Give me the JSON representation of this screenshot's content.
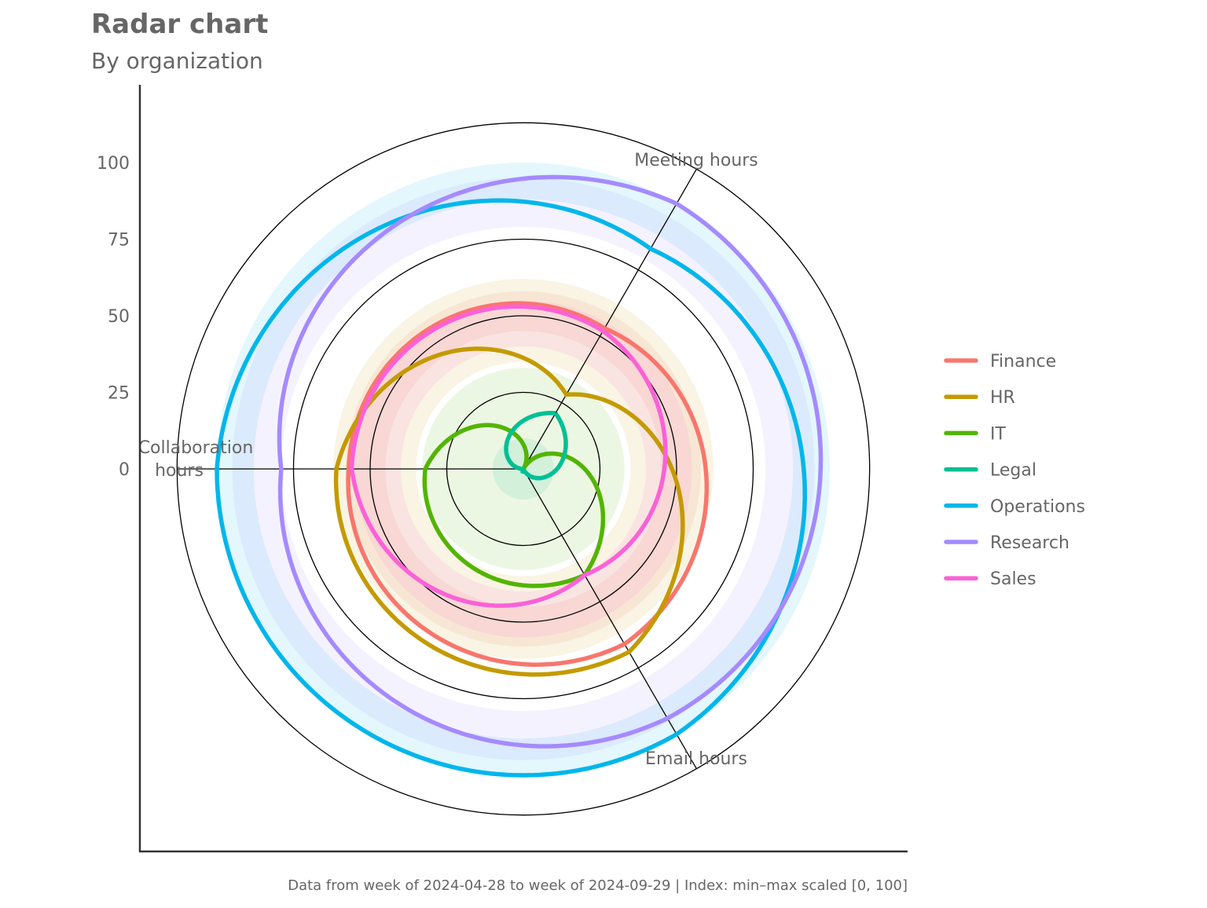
{
  "chart_data": {
    "type": "radar",
    "title": "Radar chart",
    "subtitle": "By organization",
    "caption": "Data from week of 2024-04-28 to week of 2024-09-29 | Index: min–max scaled [0, 100]",
    "axes": [
      "Meeting hours",
      "Collaboration hours",
      "Email hours"
    ],
    "radial_ticks": [
      0,
      25,
      50,
      75,
      100
    ],
    "rlim": [
      0,
      113
    ],
    "grid": true,
    "legend_position": "right",
    "series": [
      {
        "name": "Finance",
        "color": "#F8766D",
        "values": [
          53,
          57,
          66
        ],
        "band": [
          45,
          58
        ]
      },
      {
        "name": "HR",
        "color": "#C49A00",
        "values": [
          28,
          61,
          69
        ],
        "band": [
          35,
          62
        ]
      },
      {
        "name": "IT",
        "color": "#53B400",
        "values": [
          0,
          32,
          40
        ],
        "band": [
          0,
          33
        ]
      },
      {
        "name": "Legal",
        "color": "#00C094",
        "values": [
          21,
          0,
          1
        ],
        "band": [
          0,
          10
        ]
      },
      {
        "name": "Operations",
        "color": "#00B6EB",
        "values": [
          83,
          100,
          100
        ],
        "band": [
          88,
          100
        ]
      },
      {
        "name": "Research",
        "color": "#A58AFF",
        "values": [
          100,
          79,
          94
        ],
        "band": [
          79,
          95
        ]
      },
      {
        "name": "Sales",
        "color": "#FB61D7",
        "values": [
          52,
          56,
          40
        ],
        "band": [
          40,
          55
        ]
      }
    ]
  }
}
